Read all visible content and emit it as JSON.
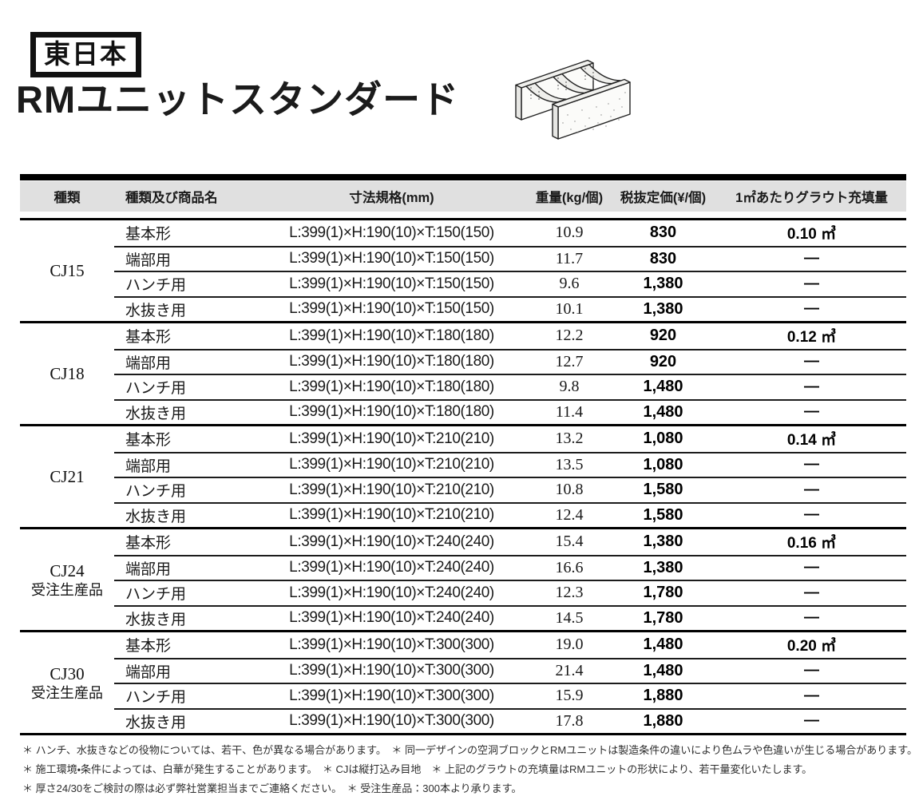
{
  "header": {
    "region_badge": "東日本",
    "title": "RMユニットスタンダード",
    "illustration_label": "RMユニット ブロック立体図"
  },
  "table": {
    "columns": [
      "種類",
      "種類及び商品名",
      "寸法規格(mm)",
      "重量(kg/個)",
      "税抜定価(¥/個)",
      "1㎡あたりグラウト充填量"
    ],
    "groups": [
      {
        "type": "CJ15",
        "type_note": "",
        "rows": [
          {
            "name": "基本形",
            "size": "L:399(1)×H:190(10)×T:150(150)",
            "weight": "10.9",
            "price": "830",
            "grout": "0.10 ㎥"
          },
          {
            "name": "端部用",
            "size": "L:399(1)×H:190(10)×T:150(150)",
            "weight": "11.7",
            "price": "830",
            "grout": "—"
          },
          {
            "name": "ハンチ用",
            "size": "L:399(1)×H:190(10)×T:150(150)",
            "weight": "9.6",
            "price": "1,380",
            "grout": "—"
          },
          {
            "name": "水抜き用",
            "size": "L:399(1)×H:190(10)×T:150(150)",
            "weight": "10.1",
            "price": "1,380",
            "grout": "—"
          }
        ]
      },
      {
        "type": "CJ18",
        "type_note": "",
        "rows": [
          {
            "name": "基本形",
            "size": "L:399(1)×H:190(10)×T:180(180)",
            "weight": "12.2",
            "price": "920",
            "grout": "0.12 ㎥"
          },
          {
            "name": "端部用",
            "size": "L:399(1)×H:190(10)×T:180(180)",
            "weight": "12.7",
            "price": "920",
            "grout": "—"
          },
          {
            "name": "ハンチ用",
            "size": "L:399(1)×H:190(10)×T:180(180)",
            "weight": "9.8",
            "price": "1,480",
            "grout": "—"
          },
          {
            "name": "水抜き用",
            "size": "L:399(1)×H:190(10)×T:180(180)",
            "weight": "11.4",
            "price": "1,480",
            "grout": "—"
          }
        ]
      },
      {
        "type": "CJ21",
        "type_note": "",
        "rows": [
          {
            "name": "基本形",
            "size": "L:399(1)×H:190(10)×T:210(210)",
            "weight": "13.2",
            "price": "1,080",
            "grout": "0.14 ㎥"
          },
          {
            "name": "端部用",
            "size": "L:399(1)×H:190(10)×T:210(210)",
            "weight": "13.5",
            "price": "1,080",
            "grout": "—"
          },
          {
            "name": "ハンチ用",
            "size": "L:399(1)×H:190(10)×T:210(210)",
            "weight": "10.8",
            "price": "1,580",
            "grout": "—"
          },
          {
            "name": "水抜き用",
            "size": "L:399(1)×H:190(10)×T:210(210)",
            "weight": "12.4",
            "price": "1,580",
            "grout": "—"
          }
        ]
      },
      {
        "type": "CJ24",
        "type_note": "受注生産品",
        "rows": [
          {
            "name": "基本形",
            "size": "L:399(1)×H:190(10)×T:240(240)",
            "weight": "15.4",
            "price": "1,380",
            "grout": "0.16 ㎥"
          },
          {
            "name": "端部用",
            "size": "L:399(1)×H:190(10)×T:240(240)",
            "weight": "16.6",
            "price": "1,380",
            "grout": "—"
          },
          {
            "name": "ハンチ用",
            "size": "L:399(1)×H:190(10)×T:240(240)",
            "weight": "12.3",
            "price": "1,780",
            "grout": "—"
          },
          {
            "name": "水抜き用",
            "size": "L:399(1)×H:190(10)×T:240(240)",
            "weight": "14.5",
            "price": "1,780",
            "grout": "—"
          }
        ]
      },
      {
        "type": "CJ30",
        "type_note": "受注生産品",
        "rows": [
          {
            "name": "基本形",
            "size": "L:399(1)×H:190(10)×T:300(300)",
            "weight": "19.0",
            "price": "1,480",
            "grout": "0.20 ㎥"
          },
          {
            "name": "端部用",
            "size": "L:399(1)×H:190(10)×T:300(300)",
            "weight": "21.4",
            "price": "1,480",
            "grout": "—"
          },
          {
            "name": "ハンチ用",
            "size": "L:399(1)×H:190(10)×T:300(300)",
            "weight": "15.9",
            "price": "1,880",
            "grout": "—"
          },
          {
            "name": "水抜き用",
            "size": "L:399(1)×H:190(10)×T:300(300)",
            "weight": "17.8",
            "price": "1,880",
            "grout": "—"
          }
        ]
      }
    ]
  },
  "footnotes": [
    "＊ ハンチ、水抜きなどの役物については、若干、色が異なる場合があります。　＊ 同一デザインの空洞ブロックとRMユニットは製造条件の違いにより色ムラや色違いが生じる場合があります。",
    "＊ 施工環境・条件によっては、白華が発生することがあります。　＊ CJは縦打込み目地　＊ 上記のグラウトの充填量はRMユニットの形状により、若干量変化いたします。",
    "＊ 厚さ24/30をご検討の際は必ず弊社営業担当までご連絡ください。　＊ 受注生産品：300本より承ります。"
  ]
}
